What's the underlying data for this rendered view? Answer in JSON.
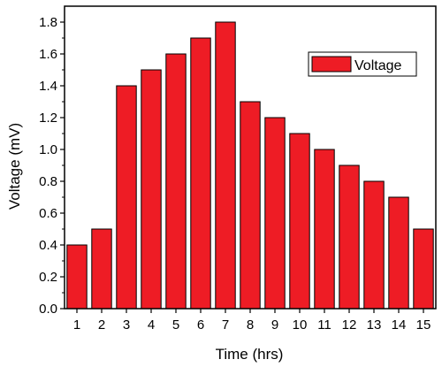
{
  "chart_data": {
    "type": "bar",
    "categories": [
      "1",
      "2",
      "3",
      "4",
      "5",
      "6",
      "7",
      "8",
      "9",
      "10",
      "11",
      "12",
      "13",
      "14",
      "15"
    ],
    "series": [
      {
        "name": "Voltage",
        "color": "#ee1c25",
        "values": [
          0.4,
          0.5,
          1.4,
          1.5,
          1.6,
          1.7,
          1.8,
          1.3,
          1.2,
          1.1,
          1.0,
          0.9,
          0.8,
          0.7,
          0.5
        ]
      }
    ],
    "xlabel": "Time (hrs)",
    "ylabel": "Voltage (mV)",
    "ylim": [
      0,
      1.9
    ],
    "yticks": [
      "0.0",
      "0.2",
      "0.4",
      "0.6",
      "0.8",
      "1.0",
      "1.2",
      "1.4",
      "1.6",
      "1.8"
    ],
    "grid": false,
    "legend_position": "top-right"
  }
}
